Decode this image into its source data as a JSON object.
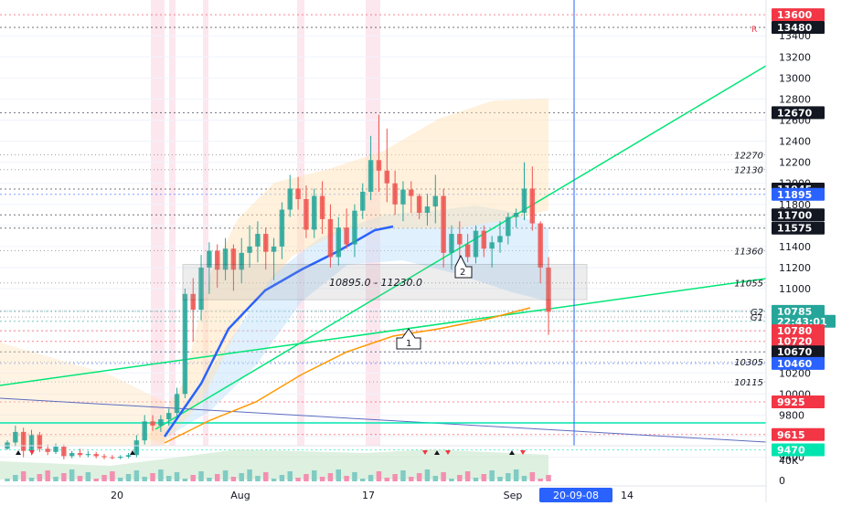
{
  "chart_data": {
    "type": "candlestick",
    "x_ticks": [
      "20",
      "Aug",
      "17",
      "Sep",
      "20-09-08",
      "14"
    ],
    "y_axis": {
      "ticks": [
        9400,
        9600,
        9800,
        10000,
        10200,
        10400,
        10600,
        10800,
        11000,
        11200,
        11400,
        11600,
        11800,
        12000,
        12200,
        12400,
        12600,
        12800,
        13000,
        13200,
        13400
      ],
      "range": [
        9350,
        13660
      ]
    },
    "candles": [
      [
        9480,
        9560,
        9470,
        9540
      ],
      [
        9540,
        9700,
        9500,
        9640
      ],
      [
        9640,
        9680,
        9400,
        9460
      ],
      [
        9460,
        9660,
        9420,
        9610
      ],
      [
        9610,
        9640,
        9450,
        9480
      ],
      [
        9480,
        9520,
        9420,
        9450
      ],
      [
        9450,
        9530,
        9430,
        9500
      ],
      [
        9500,
        9520,
        9380,
        9410
      ],
      [
        9410,
        9460,
        9390,
        9440
      ],
      [
        9440,
        9480,
        9400,
        9420
      ],
      [
        9420,
        9460,
        9400,
        9430
      ],
      [
        9430,
        9450,
        9390,
        9410
      ],
      [
        9410,
        9430,
        9380,
        9400
      ],
      [
        9400,
        9420,
        9380,
        9395
      ],
      [
        9395,
        9420,
        9380,
        9405
      ],
      [
        9405,
        9440,
        9390,
        9420
      ],
      [
        9420,
        9610,
        9400,
        9560
      ],
      [
        9560,
        9800,
        9520,
        9740
      ],
      [
        9740,
        9800,
        9650,
        9700
      ],
      [
        9700,
        9800,
        9640,
        9760
      ],
      [
        9760,
        9860,
        9700,
        9820
      ],
      [
        9820,
        10060,
        9780,
        10000
      ],
      [
        10000,
        11000,
        9960,
        10950
      ],
      [
        10950,
        11100,
        10500,
        10800
      ],
      [
        10800,
        11320,
        10700,
        11200
      ],
      [
        11200,
        11440,
        10950,
        11360
      ],
      [
        11360,
        11420,
        11010,
        11180
      ],
      [
        11180,
        11480,
        11080,
        11380
      ],
      [
        11380,
        11420,
        10980,
        11180
      ],
      [
        11180,
        11480,
        11050,
        11340
      ],
      [
        11340,
        11600,
        11200,
        11400
      ],
      [
        11400,
        11640,
        11250,
        11520
      ],
      [
        11520,
        11580,
        11180,
        11350
      ],
      [
        11350,
        11480,
        11080,
        11400
      ],
      [
        11400,
        11820,
        11280,
        11750
      ],
      [
        11750,
        12080,
        11680,
        11950
      ],
      [
        11950,
        12060,
        11750,
        11850
      ],
      [
        11850,
        11980,
        11480,
        11560
      ],
      [
        11560,
        11950,
        11480,
        11880
      ],
      [
        11880,
        12020,
        11520,
        11660
      ],
      [
        11660,
        11800,
        11200,
        11300
      ],
      [
        11300,
        11680,
        11220,
        11580
      ],
      [
        11580,
        11760,
        11380,
        11420
      ],
      [
        11420,
        11800,
        11300,
        11740
      ],
      [
        11740,
        12000,
        11660,
        11920
      ],
      [
        11920,
        12450,
        11840,
        12220
      ],
      [
        12220,
        12650,
        11920,
        12120
      ],
      [
        12120,
        12520,
        11820,
        12000
      ],
      [
        12000,
        12120,
        11700,
        11800
      ],
      [
        11800,
        12020,
        11640,
        11940
      ],
      [
        11940,
        12020,
        11720,
        11880
      ],
      [
        11880,
        11900,
        11660,
        11720
      ],
      [
        11720,
        11900,
        11600,
        11780
      ],
      [
        11780,
        12080,
        11620,
        11880
      ],
      [
        11880,
        11950,
        11200,
        11340
      ],
      [
        11340,
        11600,
        11180,
        11520
      ],
      [
        11520,
        11640,
        11280,
        11420
      ],
      [
        11420,
        11520,
        11250,
        11300
      ],
      [
        11300,
        11600,
        11240,
        11550
      ],
      [
        11550,
        11600,
        11300,
        11380
      ],
      [
        11380,
        11500,
        11200,
        11440
      ],
      [
        11440,
        11640,
        11340,
        11500
      ],
      [
        11500,
        11720,
        11420,
        11680
      ],
      [
        11680,
        11760,
        11580,
        11720
      ],
      [
        11720,
        12200,
        11650,
        11950
      ],
      [
        11950,
        12160,
        11550,
        11620
      ],
      [
        11620,
        11640,
        11050,
        11200
      ],
      [
        11200,
        11300,
        10560,
        10780
      ]
    ],
    "price_tags": [
      {
        "label": "13600",
        "value": 13600,
        "color": "#f23645"
      },
      {
        "label": "13480",
        "value": 13480,
        "color": "#131722"
      },
      {
        "label": "12670",
        "value": 12670,
        "color": "#131722"
      },
      {
        "label": "11945",
        "value": 11945,
        "color": "#131722"
      },
      {
        "label": "11895",
        "value": 11895,
        "color": "#2962ff"
      },
      {
        "label": "11700",
        "value": 11700,
        "color": "#131722"
      },
      {
        "label": "11575",
        "value": 11575,
        "color": "#131722"
      },
      {
        "label": "10785",
        "value": 10785,
        "color": "#26a69a"
      },
      {
        "label": "22:43:01",
        "value": 10690,
        "color": "#26a69a"
      },
      {
        "label": "10780",
        "value": 10600,
        "color": "#f23645"
      },
      {
        "label": "10720",
        "value": 10500,
        "color": "#f23645"
      },
      {
        "label": "10670",
        "value": 10400,
        "color": "#131722"
      },
      {
        "label": "10460",
        "value": 10290,
        "color": "#2962ff"
      },
      {
        "label": "9925",
        "value": 9925,
        "color": "#f23645"
      },
      {
        "label": "9615",
        "value": 9615,
        "color": "#f23645"
      },
      {
        "label": "9470",
        "value": 9470,
        "color": "#00e5b0"
      }
    ],
    "plain_levels": [
      {
        "label": "12270",
        "value": 12270
      },
      {
        "label": "12130",
        "value": 12130
      },
      {
        "label": "11360",
        "value": 11360
      },
      {
        "label": "11055",
        "value": 11055
      },
      {
        "label": "G2",
        "value": 10785
      },
      {
        "label": "G1",
        "value": 10730
      },
      {
        "label": "10305",
        "value": 10305
      },
      {
        "label": "10115",
        "value": 10115
      }
    ],
    "rectangle_label": "10895.0 - 11230.0",
    "callouts": [
      "1",
      "2"
    ],
    "volume_axis": {
      "ticks": [
        "40K",
        "0"
      ]
    },
    "marker_r": "R",
    "colors": {
      "up": "#26a69a",
      "down": "#ef5350",
      "trend": "#00e676",
      "ma_blue": "#2962ff",
      "ma_orange": "#ff9800"
    }
  }
}
